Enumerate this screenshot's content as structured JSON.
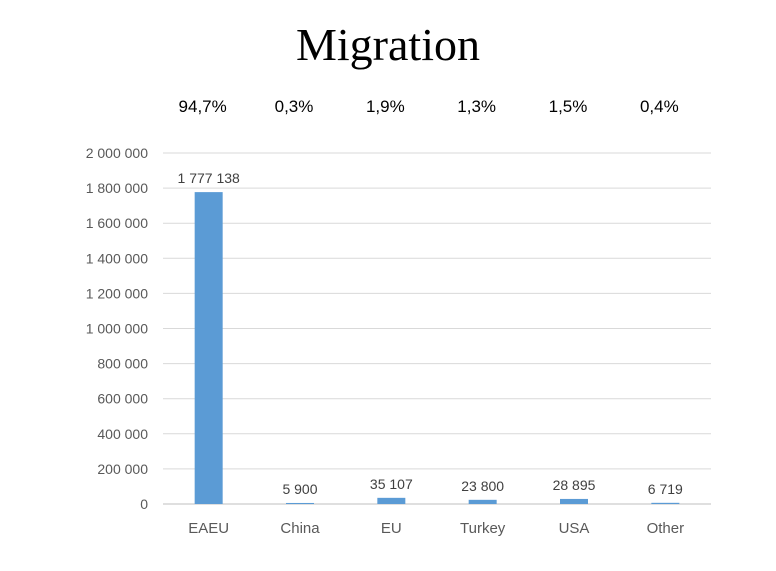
{
  "chart_data": {
    "type": "bar",
    "title": "Migration",
    "categories": [
      "EAEU",
      "China",
      "EU",
      "Turkey",
      "USA",
      "Other"
    ],
    "values": [
      1777138,
      5900,
      35107,
      23800,
      28895,
      6719
    ],
    "data_labels": [
      "1 777 138",
      "5 900",
      "35 107",
      "23 800",
      "28 895",
      "6 719"
    ],
    "percentages": [
      "94,7%",
      "0,3%",
      "1,9%",
      "1,3%",
      "1,5%",
      "0,4%"
    ],
    "ylim": [
      0,
      2000000
    ],
    "yticks": [
      0,
      200000,
      400000,
      600000,
      800000,
      1000000,
      1200000,
      1400000,
      1600000,
      1800000,
      2000000
    ],
    "ytick_labels": [
      "0",
      "200 000",
      "400 000",
      "600 000",
      "800 000",
      "1 000 000",
      "1 200 000",
      "1 400 000",
      "1 600 000",
      "1 800 000",
      "2 000 000"
    ],
    "grid": true,
    "bar_color": "#5B9BD5",
    "legend": "none"
  }
}
